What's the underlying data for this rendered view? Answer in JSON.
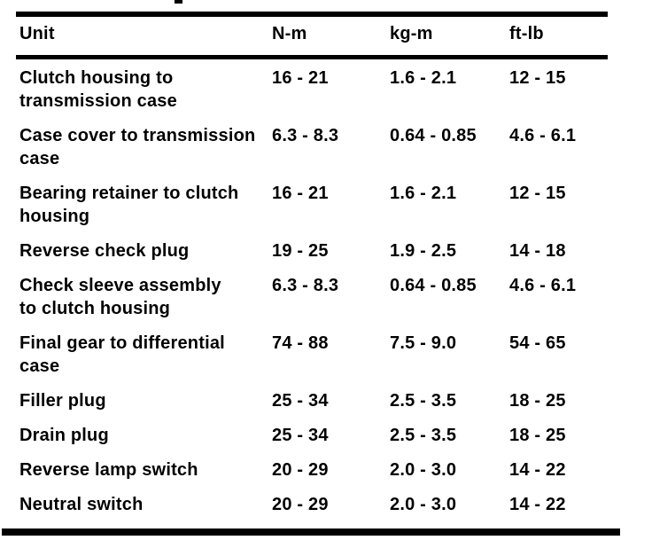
{
  "colors": {
    "paper": "#ffffff",
    "ink": "#0a0a0a",
    "rule": "#060606"
  },
  "table": {
    "columns": [
      {
        "key": "unit",
        "label": "Unit"
      },
      {
        "key": "n_m",
        "label": "N-m"
      },
      {
        "key": "kg_m",
        "label": "kg-m"
      },
      {
        "key": "ft_lb",
        "label": "ft-lb"
      }
    ],
    "rows": [
      {
        "unit_lines": [
          "Clutch housing to",
          "transmission case"
        ],
        "n_m": "16 - 21",
        "kg_m": "1.6 - 2.1",
        "ft_lb": "12 - 15"
      },
      {
        "unit_lines": [
          "Case cover to transmission",
          "case"
        ],
        "n_m": "6.3 - 8.3",
        "kg_m": "0.64 - 0.85",
        "ft_lb": "4.6 - 6.1"
      },
      {
        "unit_lines": [
          "Bearing retainer to clutch",
          "housing"
        ],
        "n_m": "16 - 21",
        "kg_m": "1.6 - 2.1",
        "ft_lb": "12 - 15"
      },
      {
        "unit_lines": [
          "Reverse check plug"
        ],
        "n_m": "19 - 25",
        "kg_m": "1.9 - 2.5",
        "ft_lb": "14 - 18"
      },
      {
        "unit_lines": [
          "Check sleeve assembly",
          "to clutch housing"
        ],
        "n_m": "6.3 - 8.3",
        "kg_m": "0.64 - 0.85",
        "ft_lb": "4.6 - 6.1"
      },
      {
        "unit_lines": [
          "Final gear to differential",
          "case"
        ],
        "n_m": "74 - 88",
        "kg_m": "7.5 - 9.0",
        "ft_lb": "54 - 65"
      },
      {
        "unit_lines": [
          "Filler plug"
        ],
        "n_m": "25 - 34",
        "kg_m": "2.5 - 3.5",
        "ft_lb": "18 - 25"
      },
      {
        "unit_lines": [
          "Drain plug"
        ],
        "n_m": "25 - 34",
        "kg_m": "2.5 - 3.5",
        "ft_lb": "18 - 25"
      },
      {
        "unit_lines": [
          "Reverse lamp switch"
        ],
        "n_m": "20 - 29",
        "kg_m": "2.0 - 3.0",
        "ft_lb": "14 - 22"
      },
      {
        "unit_lines": [
          "Neutral switch"
        ],
        "n_m": "20 - 29",
        "kg_m": "2.0 - 3.0",
        "ft_lb": "14 - 22"
      }
    ]
  }
}
